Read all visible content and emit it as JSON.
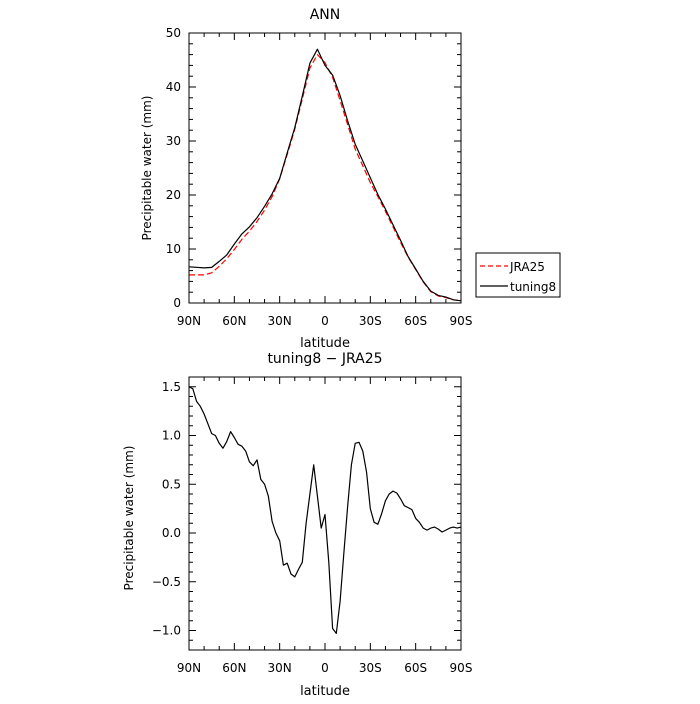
{
  "chart_data": [
    {
      "type": "line",
      "title": "ANN",
      "xlabel": "latitude",
      "ylabel": "Precipitable water  (mm)",
      "xlim": [
        90,
        -90
      ],
      "ylim": [
        0,
        50
      ],
      "x_ticks": [
        90,
        60,
        30,
        0,
        -30,
        -60,
        -90
      ],
      "x_tick_labels": [
        "90N",
        "60N",
        "30N",
        "0",
        "30S",
        "60S",
        "90S"
      ],
      "y_ticks": [
        0,
        10,
        20,
        30,
        40,
        50
      ],
      "y_tick_labels": [
        "0",
        "10",
        "20",
        "30",
        "40",
        "50"
      ],
      "legend_position": "right",
      "series": [
        {
          "name": "JRA25",
          "color": "#ff0000",
          "dash": "dashed",
          "x": [
            90,
            80,
            75,
            70,
            65,
            60,
            55,
            50,
            45,
            40,
            35,
            30,
            25,
            20,
            15,
            10,
            5,
            0,
            -5,
            -10,
            -15,
            -20,
            -25,
            -30,
            -35,
            -40,
            -45,
            -50,
            -55,
            -60,
            -65,
            -70,
            -75,
            -80,
            -85,
            -90
          ],
          "y": [
            5.2,
            5.2,
            5.6,
            6.8,
            8.2,
            9.9,
            11.8,
            13.3,
            15.1,
            17.2,
            19.7,
            23.0,
            27.5,
            32.2,
            37.8,
            43.5,
            46.0,
            44.5,
            41.8,
            37.5,
            33.0,
            28.5,
            25.4,
            22.3,
            19.7,
            17.0,
            14.1,
            11.2,
            8.5,
            6.2,
            3.9,
            2.1,
            1.3,
            1.0,
            0.6,
            0.4
          ]
        },
        {
          "name": "tuning8",
          "color": "#000000",
          "dash": "solid",
          "x": [
            90,
            80,
            75,
            70,
            65,
            60,
            55,
            50,
            45,
            40,
            35,
            30,
            25,
            20,
            15,
            10,
            5,
            0,
            -5,
            -10,
            -15,
            -20,
            -25,
            -30,
            -35,
            -40,
            -45,
            -50,
            -55,
            -60,
            -65,
            -70,
            -75,
            -80,
            -85,
            -90
          ],
          "y": [
            6.7,
            6.5,
            6.6,
            7.7,
            8.9,
            10.9,
            12.8,
            14.1,
            15.8,
            17.9,
            20.2,
            23.1,
            27.8,
            32.5,
            38.3,
            44.4,
            47.0,
            44.0,
            42.2,
            38.4,
            33.7,
            29.4,
            26.3,
            23.2,
            20.1,
            17.4,
            14.5,
            11.6,
            8.6,
            6.3,
            4.0,
            2.2,
            1.4,
            1.1,
            0.6,
            0.4
          ]
        }
      ]
    },
    {
      "type": "line",
      "title": "tuning8 − JRA25",
      "xlabel": "latitude",
      "ylabel": "Precipitable water  (mm)",
      "xlim": [
        90,
        -90
      ],
      "ylim": [
        -1.2,
        1.6
      ],
      "x_ticks": [
        90,
        60,
        30,
        0,
        -30,
        -60,
        -90
      ],
      "x_tick_labels": [
        "90N",
        "60N",
        "30N",
        "0",
        "30S",
        "60S",
        "90S"
      ],
      "y_ticks": [
        1.5,
        1.0,
        0.5,
        0.0,
        -0.5,
        -1.0
      ],
      "y_tick_labels": [
        "1.5",
        "1.0",
        "0.5",
        "0.0",
        "−0.5",
        "−1.0"
      ],
      "series": [
        {
          "name": "tuning8 − JRA25",
          "color": "#000000",
          "dash": "solid",
          "x": [
            90,
            87.5,
            85,
            82.5,
            80,
            77.5,
            75,
            72.5,
            70,
            67.5,
            65,
            62.5,
            60,
            57.5,
            55,
            52.5,
            50,
            47.5,
            45,
            42.5,
            40,
            37.5,
            35,
            32.5,
            30,
            27.5,
            25,
            22.5,
            20,
            17.5,
            15,
            12.5,
            10,
            7.5,
            5,
            2.5,
            0,
            -2.5,
            -5,
            -7.5,
            -10,
            -12.5,
            -15,
            -17.5,
            -20,
            -22.5,
            -25,
            -27.5,
            -30,
            -32.5,
            -35,
            -37.5,
            -40,
            -42.5,
            -45,
            -47.5,
            -50,
            -52.5,
            -55,
            -57.5,
            -60,
            -62.5,
            -65,
            -67.5,
            -70,
            -72.5,
            -75,
            -77.5,
            -80,
            -82.5,
            -85,
            -87.5,
            -90
          ],
          "y": [
            1.5,
            1.48,
            1.35,
            1.3,
            1.22,
            1.12,
            1.02,
            1.0,
            0.92,
            0.87,
            0.94,
            1.04,
            0.98,
            0.91,
            0.89,
            0.84,
            0.73,
            0.69,
            0.75,
            0.55,
            0.5,
            0.38,
            0.12,
            0.0,
            -0.08,
            -0.33,
            -0.31,
            -0.42,
            -0.45,
            -0.37,
            -0.3,
            0.1,
            0.4,
            0.7,
            0.38,
            0.05,
            0.19,
            -0.3,
            -0.98,
            -1.03,
            -0.7,
            -0.2,
            0.28,
            0.7,
            0.92,
            0.93,
            0.84,
            0.62,
            0.25,
            0.11,
            0.09,
            0.2,
            0.33,
            0.4,
            0.43,
            0.41,
            0.35,
            0.28,
            0.26,
            0.24,
            0.15,
            0.11,
            0.05,
            0.03,
            0.05,
            0.06,
            0.04,
            0.01,
            0.03,
            0.05,
            0.06,
            0.05,
            0.06
          ]
        }
      ]
    }
  ]
}
